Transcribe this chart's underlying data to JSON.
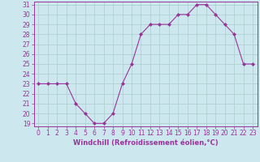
{
  "x": [
    0,
    1,
    2,
    3,
    4,
    5,
    6,
    7,
    8,
    9,
    10,
    11,
    12,
    13,
    14,
    15,
    16,
    17,
    18,
    19,
    20,
    21,
    22,
    23
  ],
  "y": [
    23,
    23,
    23,
    23,
    21,
    20,
    19,
    19,
    20,
    23,
    25,
    28,
    29,
    29,
    29,
    30,
    30,
    31,
    31,
    30,
    29,
    28,
    25,
    25
  ],
  "ylim_min": 19,
  "ylim_max": 31,
  "yticks": [
    19,
    20,
    21,
    22,
    23,
    24,
    25,
    26,
    27,
    28,
    29,
    30,
    31
  ],
  "xticks": [
    0,
    1,
    2,
    3,
    4,
    5,
    6,
    7,
    8,
    9,
    10,
    11,
    12,
    13,
    14,
    15,
    16,
    17,
    18,
    19,
    20,
    21,
    22,
    23
  ],
  "xlabel": "Windchill (Refroidissement éolien,°C)",
  "line_color": "#993399",
  "marker": "D",
  "marker_size": 2.0,
  "bg_color": "#cce8ee",
  "grid_color": "#aacccc",
  "tick_color": "#993399",
  "label_color": "#993399",
  "tick_fontsize": 5.5,
  "xlabel_fontsize": 6.0
}
